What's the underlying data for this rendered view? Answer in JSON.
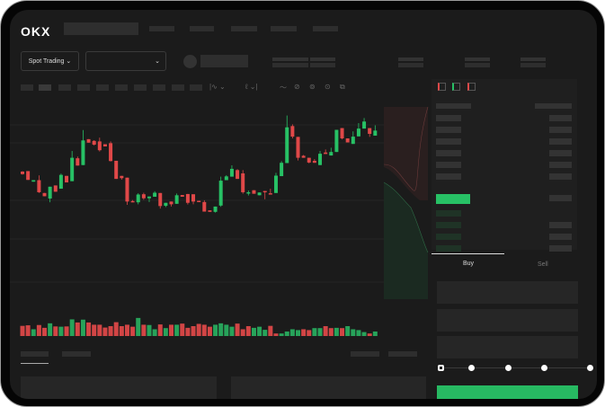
{
  "header": {
    "logo": "OKX"
  },
  "toolbar": {
    "mode_button": "Spot Trading",
    "mode_chevron": "⌄",
    "pair_chevron": "⌄"
  },
  "order_form": {
    "tabs": [
      {
        "label": "Buy",
        "active": true
      },
      {
        "label": "Sell",
        "active": false
      }
    ],
    "slider_percent": 0
  },
  "colors": {
    "up": "#27c165",
    "down": "#e04848",
    "background": "#1b1b1b"
  },
  "chart_data": {
    "type": "candlestick",
    "grid": true,
    "ylim": [
      10,
      100
    ],
    "candles": [
      [
        50,
        48,
        50.4,
        47.6
      ],
      [
        50.4,
        43.4,
        50.4,
        43.4
      ],
      [
        42,
        43.2,
        43.2,
        42
      ],
      [
        43.2,
        33.6,
        47,
        33
      ],
      [
        33,
        30.4,
        33,
        30.4
      ],
      [
        28.6,
        38,
        38,
        25.6
      ],
      [
        39,
        34,
        39,
        34
      ],
      [
        36.4,
        47.4,
        48.4,
        36.4
      ],
      [
        46.6,
        41.4,
        46.6,
        41.4
      ],
      [
        42.4,
        61,
        66.4,
        42.4
      ],
      [
        60.6,
        54.8,
        62,
        54.8
      ],
      [
        55.2,
        74.8,
        83,
        55.2
      ],
      [
        75.8,
        73,
        75.8,
        73
      ],
      [
        74.4,
        71.4,
        75,
        70.8
      ],
      [
        74,
        67,
        77,
        66
      ],
      [
        71.8,
        70,
        71.8,
        70
      ],
      [
        72.6,
        58.4,
        74,
        58
      ],
      [
        58.6,
        44.2,
        58.6,
        44.2
      ],
      [
        46.6,
        44.8,
        46.6,
        43.6
      ],
      [
        45.2,
        26.2,
        45.2,
        23.6
      ],
      [
        26.6,
        25.6,
        27.4,
        25.6
      ],
      [
        25.6,
        31.8,
        32.8,
        24
      ],
      [
        32,
        28.8,
        33.2,
        27.6
      ],
      [
        28.8,
        30.2,
        30.2,
        25.8
      ],
      [
        30,
        33.2,
        34.4,
        30
      ],
      [
        33,
        22.6,
        33,
        20.6
      ],
      [
        22.8,
        25.2,
        25.2,
        21.8
      ],
      [
        26.2,
        24,
        26.2,
        22.2
      ],
      [
        24.4,
        31.2,
        32.6,
        24.4
      ],
      [
        31.4,
        30,
        31.4,
        30
      ],
      [
        32.2,
        25.2,
        32.2,
        23.8
      ],
      [
        32,
        26.2,
        32,
        24
      ],
      [
        26.8,
        26,
        26.8,
        26
      ],
      [
        25.8,
        18.2,
        27.2,
        18.2
      ],
      [
        19.2,
        18,
        19.2,
        18
      ],
      [
        18,
        22.2,
        22.2,
        17.4
      ],
      [
        23,
        42.8,
        46,
        22
      ],
      [
        43.2,
        46.2,
        47.2,
        43.2
      ],
      [
        46,
        52.2,
        55,
        46
      ],
      [
        51.2,
        44.2,
        52,
        44.2
      ],
      [
        48.6,
        33.6,
        51.2,
        32.4
      ],
      [
        32.6,
        33.6,
        35,
        31
      ],
      [
        35.2,
        32.4,
        35.2,
        32.4
      ],
      [
        31.2,
        33.4,
        33.4,
        31.2
      ],
      [
        34.6,
        34,
        34.6,
        28
      ],
      [
        32.8,
        31.8,
        36.4,
        31.8
      ],
      [
        33,
        46.8,
        49,
        33
      ],
      [
        46.4,
        57,
        58.4,
        46.4
      ],
      [
        56.8,
        85.2,
        94.6,
        56.8
      ],
      [
        86.2,
        77.8,
        87.6,
        76.4
      ],
      [
        77.6,
        61,
        77.6,
        58.8
      ],
      [
        62.6,
        61,
        63.2,
        61
      ],
      [
        61,
        57.2,
        61,
        56.6
      ],
      [
        58.6,
        57,
        60,
        57
      ],
      [
        55.2,
        64.2,
        66.4,
        55.2
      ],
      [
        65.2,
        64,
        67.6,
        64
      ],
      [
        62.8,
        65.6,
        69,
        62.8
      ],
      [
        65.6,
        83.2,
        83.2,
        65.6
      ],
      [
        84.6,
        76.4,
        84.6,
        75.6
      ],
      [
        76.4,
        73.2,
        76.4,
        73.2
      ],
      [
        72,
        77.8,
        82,
        72
      ],
      [
        78,
        84.2,
        88.6,
        78
      ],
      [
        84.2,
        89.8,
        92.6,
        84.2
      ],
      [
        84.6,
        80,
        84.6,
        77.6
      ],
      [
        78.6,
        82.6,
        86.8,
        78.6
      ]
    ],
    "candle_format": [
      "open",
      "close",
      "high",
      "low"
    ],
    "volume": [
      36,
      38,
      24,
      39,
      29,
      45,
      34,
      33,
      34,
      59,
      48,
      58,
      48,
      40,
      40,
      30,
      35,
      49,
      35,
      40,
      33,
      64,
      40,
      39,
      24,
      41,
      28,
      40,
      40,
      44,
      29,
      35,
      43,
      40,
      33,
      40,
      45,
      40,
      33,
      44,
      24,
      35,
      29,
      33,
      22,
      36,
      9,
      9,
      16,
      24,
      21,
      24,
      21,
      28,
      28,
      35,
      28,
      29,
      28,
      35,
      24,
      21,
      14,
      9,
      16
    ],
    "volume_up": [
      0,
      0,
      1,
      0,
      0,
      1,
      0,
      1,
      0,
      1,
      0,
      1,
      0,
      0,
      0,
      0,
      0,
      0,
      0,
      0,
      0,
      1,
      0,
      1,
      1,
      0,
      1,
      0,
      1,
      0,
      0,
      0,
      0,
      0,
      0,
      1,
      1,
      1,
      1,
      0,
      0,
      0,
      1,
      1,
      1,
      0,
      0,
      1,
      1,
      1,
      1,
      0,
      0,
      1,
      1,
      0,
      0,
      1,
      0,
      1,
      1,
      1,
      1,
      0,
      1
    ]
  }
}
